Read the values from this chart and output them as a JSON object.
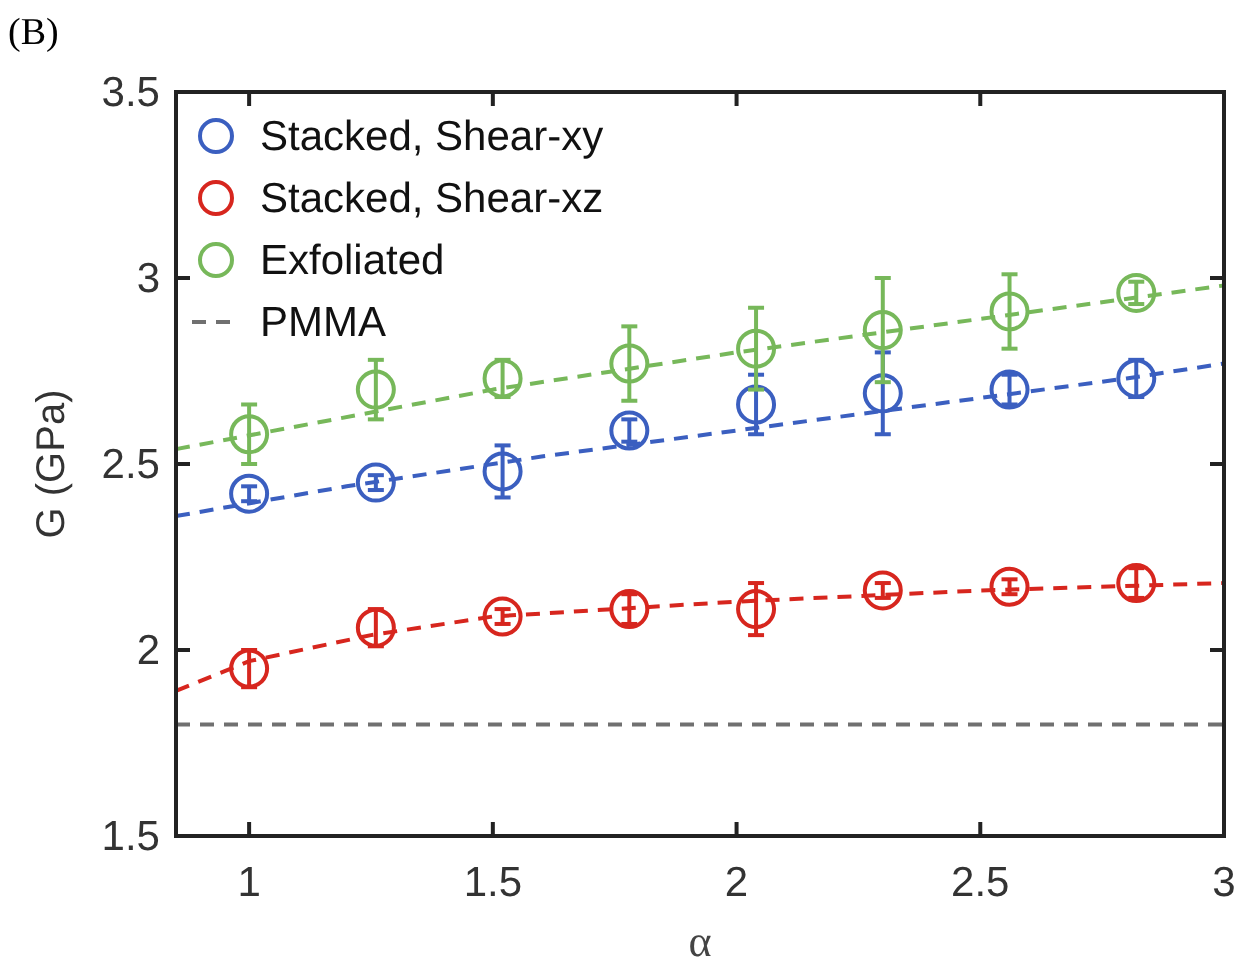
{
  "chart_data": {
    "type": "scatter",
    "title": "(B)",
    "xlabel": "α",
    "ylabel": "G (GPa)",
    "xlim": [
      0.85,
      3
    ],
    "xticks": [
      1,
      1.5,
      2,
      2.5,
      3
    ],
    "ylim": [
      1.5,
      3.5
    ],
    "yticks": [
      1.5,
      2,
      2.5,
      3,
      3.5
    ],
    "grid": false,
    "legend": "top left",
    "marker": "circle",
    "series": [
      {
        "name": "Stacked, Shear-xy",
        "color": "#3b5fc0",
        "x": [
          1,
          1.26,
          1.52,
          1.78,
          2.04,
          2.3,
          2.56,
          2.82
        ],
        "values": [
          2.42,
          2.45,
          2.48,
          2.59,
          2.66,
          2.69,
          2.7,
          2.73
        ],
        "errors": [
          0.02,
          0.02,
          0.07,
          0.03,
          0.08,
          0.11,
          0.04,
          0.05
        ]
      },
      {
        "name": "Stacked, Shear-xz",
        "color": "#d7261e",
        "x": [
          1,
          1.26,
          1.52,
          1.78,
          2.04,
          2.3,
          2.56,
          2.82
        ],
        "values": [
          1.95,
          2.06,
          2.09,
          2.11,
          2.11,
          2.16,
          2.17,
          2.18
        ],
        "errors": [
          0.05,
          0.05,
          0.02,
          0.04,
          0.07,
          0.02,
          0.02,
          0.04
        ]
      },
      {
        "name": "Exfoliated",
        "color": "#77b85a",
        "x": [
          1,
          1.26,
          1.52,
          1.78,
          2.04,
          2.3,
          2.56,
          2.82
        ],
        "values": [
          2.58,
          2.7,
          2.73,
          2.77,
          2.81,
          2.86,
          2.91,
          2.96
        ],
        "errors": [
          0.08,
          0.08,
          0.05,
          0.1,
          0.11,
          0.14,
          0.1,
          0.03
        ]
      },
      {
        "name": "PMMA",
        "type": "line",
        "marker": "none",
        "line_style": "dashed",
        "color": "#707070",
        "x": [
          0.85,
          3
        ],
        "values": [
          1.8,
          1.8
        ]
      },
      {
        "type": "line",
        "marker": "none",
        "line_style": "dashed",
        "color": "#3b5fc0",
        "x": [
          0.85,
          1.2,
          1.6,
          2,
          2.4,
          2.8,
          3
        ],
        "values": [
          2.36,
          2.44,
          2.52,
          2.59,
          2.66,
          2.73,
          2.77
        ]
      },
      {
        "type": "line",
        "marker": "none",
        "line_style": "dashed",
        "color": "#d7261e",
        "x": [
          0.85,
          1,
          1.25,
          1.5,
          2,
          2.5,
          3
        ],
        "values": [
          1.89,
          1.97,
          2.04,
          2.09,
          2.13,
          2.16,
          2.18
        ]
      },
      {
        "type": "line",
        "marker": "none",
        "line_style": "dashed",
        "color": "#77b85a",
        "x": [
          0.85,
          1.5,
          2,
          2.5,
          3
        ],
        "values": [
          2.54,
          2.7,
          2.8,
          2.89,
          2.98
        ]
      }
    ]
  }
}
